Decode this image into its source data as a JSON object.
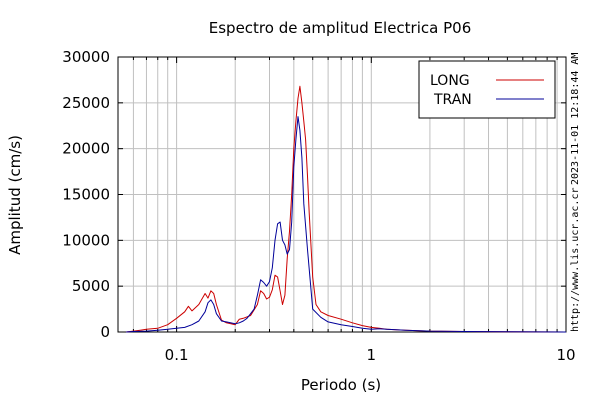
{
  "chart_data": {
    "type": "line",
    "title": "Espectro de amplitud Electrica P06",
    "xlabel": "Periodo (s)",
    "ylabel": "Amplitud (cm/s)",
    "x_scale": "log",
    "xlim": [
      0.05,
      10
    ],
    "ylim": [
      0,
      30000
    ],
    "xticks": [
      0.1,
      1,
      10
    ],
    "xtick_labels": [
      "0.1",
      "1",
      "10"
    ],
    "yticks": [
      0,
      5000,
      10000,
      15000,
      20000,
      25000,
      30000
    ],
    "ytick_labels": [
      "0",
      "5000",
      "10000",
      "15000",
      "20000",
      "25000",
      "30000"
    ],
    "grid": true,
    "legend_position": "top-right",
    "timestamp": "2023-11-01 12:18:44 AM",
    "source_url": "http://www.lis.ucr.ac.cr",
    "series": [
      {
        "name": "LONG",
        "color": "#cc0000",
        "x": [
          0.055,
          0.06,
          0.065,
          0.07,
          0.08,
          0.09,
          0.1,
          0.11,
          0.115,
          0.12,
          0.13,
          0.14,
          0.145,
          0.15,
          0.155,
          0.16,
          0.17,
          0.18,
          0.19,
          0.2,
          0.21,
          0.22,
          0.24,
          0.26,
          0.27,
          0.28,
          0.29,
          0.3,
          0.31,
          0.32,
          0.33,
          0.34,
          0.35,
          0.36,
          0.37,
          0.38,
          0.39,
          0.4,
          0.41,
          0.42,
          0.43,
          0.44,
          0.45,
          0.46,
          0.47,
          0.48,
          0.5,
          0.52,
          0.55,
          0.6,
          0.7,
          0.8,
          0.9,
          1.0,
          1.1,
          1.2,
          1.5,
          2.0,
          3.0,
          5.0,
          10.0
        ],
        "y": [
          0,
          100,
          200,
          300,
          400,
          800,
          1500,
          2200,
          2800,
          2300,
          3000,
          4200,
          3700,
          4500,
          4200,
          3000,
          1300,
          1000,
          900,
          800,
          1400,
          1500,
          1800,
          3000,
          4500,
          4200,
          3600,
          3800,
          4600,
          6200,
          6000,
          4500,
          3000,
          4000,
          8000,
          11000,
          15000,
          20000,
          23000,
          25500,
          26800,
          25000,
          23000,
          21000,
          17000,
          13000,
          6000,
          3000,
          2200,
          1800,
          1400,
          1000,
          700,
          500,
          400,
          300,
          200,
          100,
          50,
          20,
          0
        ]
      },
      {
        "name": "TRAN",
        "color": "#000099",
        "x": [
          0.055,
          0.06,
          0.07,
          0.08,
          0.09,
          0.1,
          0.11,
          0.12,
          0.13,
          0.14,
          0.145,
          0.15,
          0.155,
          0.16,
          0.17,
          0.18,
          0.2,
          0.21,
          0.22,
          0.23,
          0.24,
          0.25,
          0.26,
          0.27,
          0.28,
          0.29,
          0.3,
          0.31,
          0.32,
          0.33,
          0.34,
          0.35,
          0.36,
          0.37,
          0.38,
          0.39,
          0.4,
          0.41,
          0.42,
          0.43,
          0.44,
          0.45,
          0.47,
          0.5,
          0.55,
          0.6,
          0.7,
          0.8,
          0.9,
          1.0,
          1.1,
          1.2,
          1.5,
          2.0,
          3.0,
          5.0,
          10.0
        ],
        "y": [
          0,
          50,
          100,
          200,
          300,
          400,
          500,
          800,
          1200,
          2200,
          3200,
          3500,
          3000,
          2000,
          1200,
          1100,
          900,
          1000,
          1200,
          1500,
          2000,
          2500,
          4000,
          5700,
          5400,
          5000,
          5500,
          7000,
          10000,
          11800,
          12000,
          10000,
          9500,
          8500,
          9000,
          12000,
          18000,
          21000,
          23500,
          22000,
          19000,
          14000,
          9000,
          2500,
          1600,
          1100,
          800,
          600,
          400,
          300,
          350,
          300,
          200,
          100,
          50,
          20,
          0
        ]
      }
    ]
  }
}
